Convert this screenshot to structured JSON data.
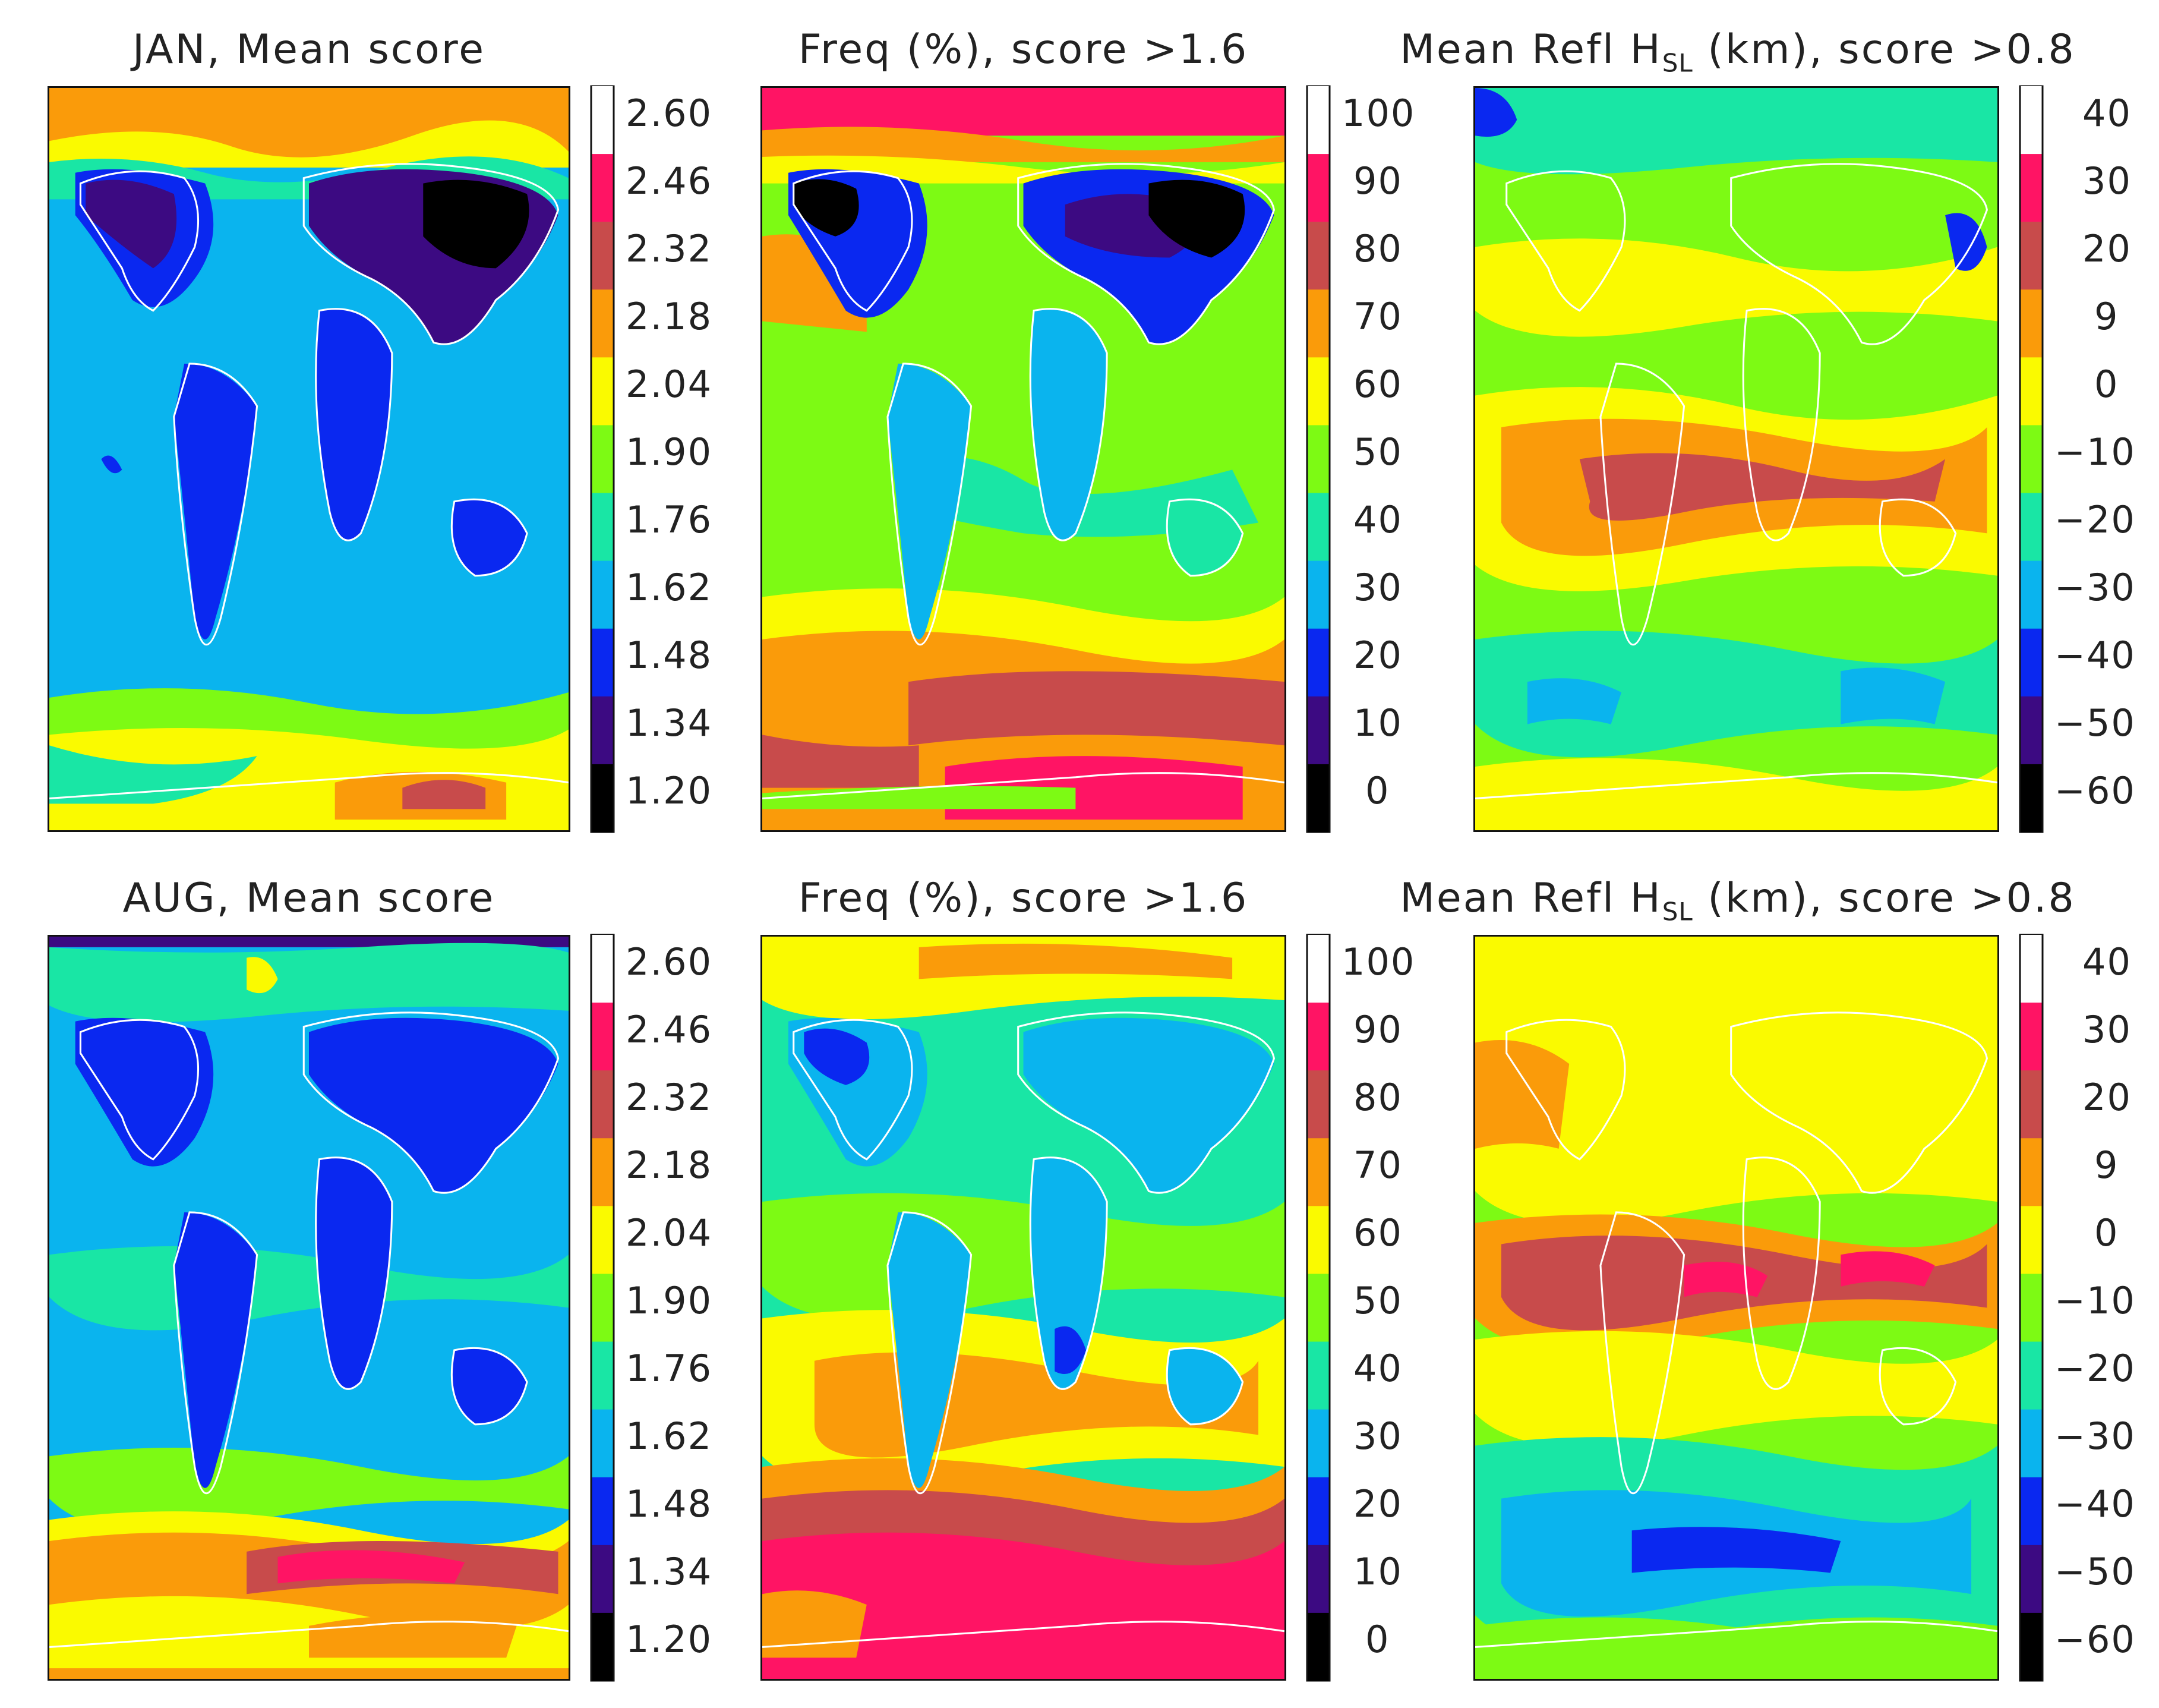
{
  "colors": {
    "levels": [
      "#000000",
      "#3c0a82",
      "#0a28f0",
      "#0ab4ee",
      "#19e6a5",
      "#7dfa14",
      "#fafa00",
      "#fa9b0a",
      "#c84b4b",
      "#ff1464",
      "#ffffff"
    ],
    "coast": "#ffffff"
  },
  "rows": [
    {
      "panels": [
        {
          "title": "JAN, Mean score",
          "colorbar": [
            "2.60",
            "2.46",
            "2.32",
            "2.18",
            "2.04",
            "1.90",
            "1.76",
            "1.62",
            "1.48",
            "1.34",
            "1.20"
          ]
        },
        {
          "title": "Freq (%), score >1.6",
          "colorbar": [
            "100",
            "90",
            "80",
            "70",
            "60",
            "50",
            "40",
            "30",
            "20",
            "10",
            "0"
          ]
        },
        {
          "title_main": "Mean Refl H",
          "title_sub": "SL",
          "title_rest": " (km), score >0.8",
          "colorbar": [
            "40",
            "30",
            "20",
            "9",
            "0",
            "−10",
            "−20",
            "−30",
            "−40",
            "−50",
            "−60"
          ]
        }
      ]
    },
    {
      "panels": [
        {
          "title": "AUG, Mean score",
          "colorbar": [
            "2.60",
            "2.46",
            "2.32",
            "2.18",
            "2.04",
            "1.90",
            "1.76",
            "1.62",
            "1.48",
            "1.34",
            "1.20"
          ]
        },
        {
          "title": "Freq (%), score >1.6",
          "colorbar": [
            "100",
            "90",
            "80",
            "70",
            "60",
            "50",
            "40",
            "30",
            "20",
            "10",
            "0"
          ]
        },
        {
          "title_main": "Mean Refl H",
          "title_sub": "SL",
          "title_rest": " (km), score >0.8",
          "colorbar": [
            "40",
            "30",
            "20",
            "9",
            "0",
            "−10",
            "−20",
            "−30",
            "−40",
            "−50",
            "−60"
          ]
        }
      ]
    }
  ]
}
